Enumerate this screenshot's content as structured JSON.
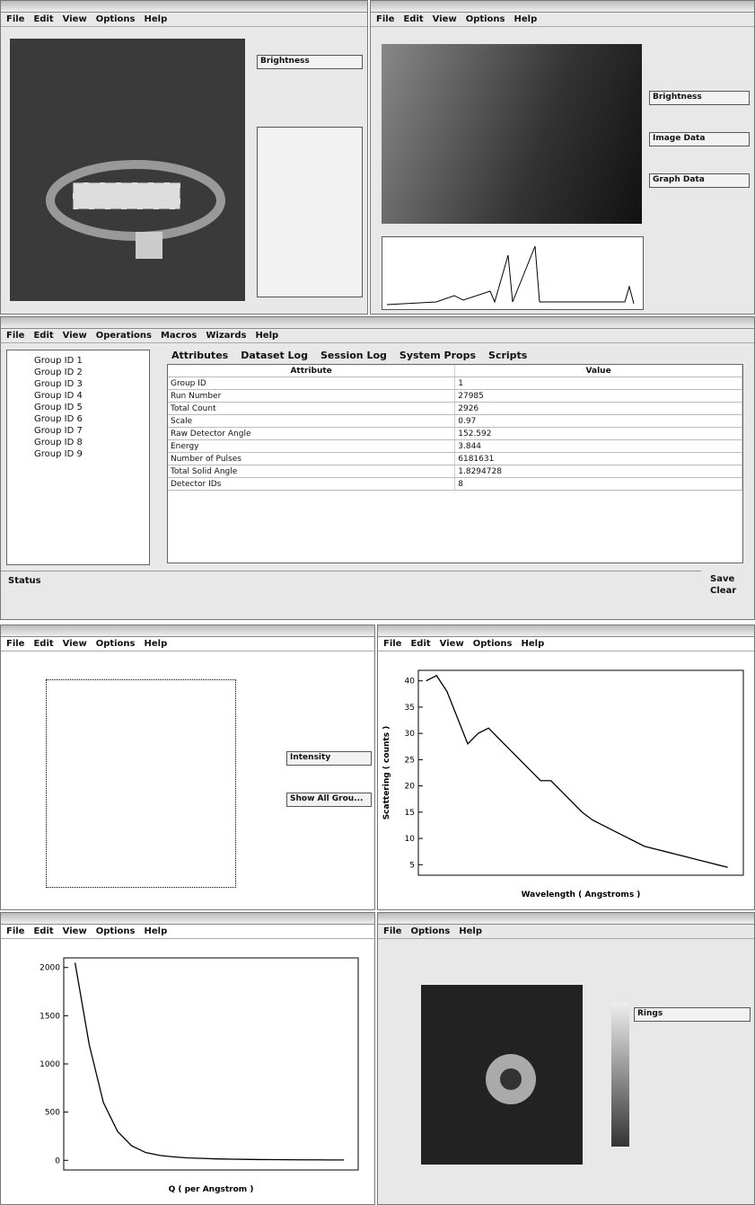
{
  "top_left": {
    "menu": [
      "File",
      "Edit",
      "View",
      "Options",
      "Help"
    ],
    "panels": [
      "Brightness"
    ]
  },
  "top_right": {
    "menu": [
      "File",
      "Edit",
      "View",
      "Options",
      "Help"
    ],
    "panels": [
      "Brightness",
      "Image Data",
      "Graph Data"
    ]
  },
  "main": {
    "menu": [
      "File",
      "Edit",
      "View",
      "Operations",
      "Macros",
      "Wizards",
      "Help"
    ],
    "tree": [
      "Group ID 1",
      "Group ID 2",
      "Group ID 3",
      "Group ID 4",
      "Group ID 5",
      "Group ID 6",
      "Group ID 7",
      "Group ID 8",
      "Group ID 9"
    ],
    "tabs": [
      "Attributes",
      "Dataset Log",
      "Session Log",
      "System Props",
      "Scripts"
    ],
    "table": {
      "header": [
        "Attribute",
        "Value"
      ],
      "rows": [
        [
          "Group ID",
          "1"
        ],
        [
          "Run Number",
          "27985"
        ],
        [
          "Total Count",
          "2926"
        ],
        [
          "Scale",
          "0.97"
        ],
        [
          "Raw Detector Angle",
          "152.592"
        ],
        [
          "Energy",
          "3.844"
        ],
        [
          "Number of Pulses",
          "6181631"
        ],
        [
          "Total Solid Angle",
          "1.8294728"
        ],
        [
          "Detector IDs",
          "8"
        ]
      ]
    },
    "status_label": "Status",
    "buttons": [
      "Save",
      "Clear"
    ]
  },
  "sensitivity": {
    "menu": [
      "File",
      "Edit",
      "View",
      "Options",
      "Help"
    ],
    "panels": [
      "Intensity",
      "Show All Grou..."
    ]
  },
  "wavelength_plot": {
    "menu": [
      "File",
      "Edit",
      "View",
      "Options",
      "Help"
    ],
    "x_label": "Wavelength ( Angstroms )",
    "y_label": "Scattering ( counts )",
    "xlim": [
      0.5,
      13
    ],
    "ylim": [
      3,
      42
    ],
    "yticks": [
      5,
      10,
      15,
      20,
      25,
      30,
      35,
      40
    ],
    "x": [
      0.8,
      1.2,
      1.6,
      2.0,
      2.4,
      2.8,
      3.2,
      3.6,
      4.0,
      4.4,
      4.8,
      5.2,
      5.6,
      6.0,
      6.4,
      6.8,
      7.2,
      7.6,
      8.0,
      8.4,
      8.8,
      9.2,
      9.6,
      10.0,
      10.4,
      10.8,
      11.2,
      11.6,
      12.0,
      12.4
    ],
    "values": [
      40,
      41,
      38,
      33,
      28,
      30,
      31,
      29,
      27,
      25,
      23,
      21,
      21,
      19,
      17,
      15,
      13.5,
      12.5,
      11.5,
      10.5,
      9.5,
      8.5,
      8,
      7.5,
      7,
      6.5,
      6,
      5.5,
      5,
      4.5
    ]
  },
  "q_plot": {
    "menu": [
      "File",
      "Edit",
      "View",
      "Options",
      "Help"
    ],
    "x_label": "Q ( per Angstrom )",
    "xlim": [
      -0.004,
      0.1
    ],
    "ylim": [
      -100,
      2100
    ],
    "yticks": [
      0,
      500,
      1000,
      1500,
      2000
    ],
    "x": [
      0,
      0.005,
      0.01,
      0.015,
      0.02,
      0.025,
      0.03,
      0.035,
      0.04,
      0.045,
      0.05,
      0.055,
      0.06,
      0.065,
      0.07,
      0.075,
      0.08,
      0.085,
      0.09,
      0.095
    ],
    "values": [
      2050,
      1200,
      600,
      300,
      150,
      80,
      50,
      35,
      25,
      20,
      15,
      12,
      10,
      8,
      7,
      6,
      5,
      5,
      4,
      4
    ]
  },
  "image_window": {
    "menu": [
      "File",
      "Options",
      "Help"
    ],
    "panels": [
      "Rings"
    ]
  }
}
